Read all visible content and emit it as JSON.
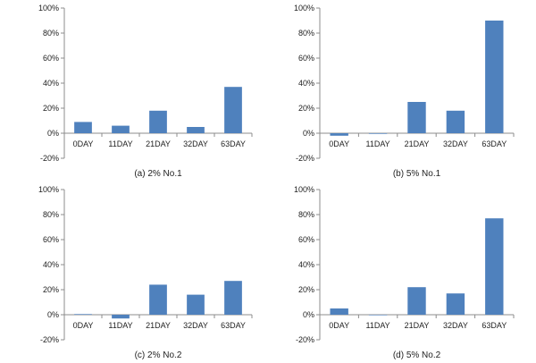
{
  "chart_data": [
    {
      "type": "bar",
      "caption": "(a) 2% No.1",
      "categories": [
        "0DAY",
        "11DAY",
        "21DAY",
        "32DAY",
        "63DAY"
      ],
      "values": [
        9,
        6,
        18,
        5,
        37
      ],
      "ylim": [
        -20,
        100
      ],
      "yticks": [
        "-20%",
        "0%",
        "20%",
        "40%",
        "60%",
        "80%",
        "100%"
      ],
      "grid": false,
      "color": "#4f81bd"
    },
    {
      "type": "bar",
      "caption": "(b) 5% No.1",
      "categories": [
        "0DAY",
        "11DAY",
        "21DAY",
        "32DAY",
        "63DAY"
      ],
      "values": [
        -2,
        -0.5,
        25,
        18,
        90
      ],
      "ylim": [
        -20,
        100
      ],
      "yticks": [
        "-20%",
        "0%",
        "20%",
        "40%",
        "60%",
        "80%",
        "100%"
      ],
      "grid": false,
      "color": "#4f81bd"
    },
    {
      "type": "bar",
      "caption": "(c) 2% No.2",
      "categories": [
        "0DAY",
        "11DAY",
        "21DAY",
        "32DAY",
        "63DAY"
      ],
      "values": [
        0.5,
        -3,
        24,
        16,
        27
      ],
      "ylim": [
        -20,
        100
      ],
      "yticks": [
        "-20%",
        "0%",
        "20%",
        "40%",
        "60%",
        "80%",
        "100%"
      ],
      "grid": false,
      "color": "#4f81bd"
    },
    {
      "type": "bar",
      "caption": "(d) 5% No.2",
      "categories": [
        "0DAY",
        "11DAY",
        "21DAY",
        "32DAY",
        "63DAY"
      ],
      "values": [
        5,
        0,
        22,
        17,
        77
      ],
      "ylim": [
        -20,
        100
      ],
      "yticks": [
        "-20%",
        "0%",
        "20%",
        "40%",
        "60%",
        "80%",
        "100%"
      ],
      "grid": false,
      "color": "#4f81bd"
    }
  ]
}
